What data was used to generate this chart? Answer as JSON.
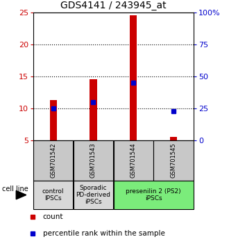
{
  "title": "GDS4141 / 243945_at",
  "samples": [
    "GSM701542",
    "GSM701543",
    "GSM701544",
    "GSM701545"
  ],
  "bar_bottom": 5.0,
  "bar_tops": [
    11.3,
    14.5,
    24.5,
    5.5
  ],
  "percentile_values": [
    10.0,
    11.0,
    14.0,
    9.5
  ],
  "ylim_left": [
    5,
    25
  ],
  "yticks_left": [
    5,
    10,
    15,
    20,
    25
  ],
  "yticks_right": [
    0,
    25,
    50,
    75,
    100
  ],
  "ytick_labels_right": [
    "0",
    "25",
    "50",
    "75",
    "100%"
  ],
  "red_color": "#cc0000",
  "blue_color": "#0000cc",
  "bar_width": 0.18,
  "groups": [
    {
      "label": "control\nIPSCs",
      "samples": [
        0
      ],
      "color": "#d8d8d8"
    },
    {
      "label": "Sporadic\nPD-derived\niPSCs",
      "samples": [
        1
      ],
      "color": "#d8d8d8"
    },
    {
      "label": "presenilin 2 (PS2)\niPSCs",
      "samples": [
        2,
        3
      ],
      "color": "#7bec7b"
    }
  ],
  "legend_count_label": "count",
  "legend_percentile_label": "percentile rank within the sample",
  "cell_line_label": "cell line",
  "sample_box_color": "#c8c8c8",
  "title_fontsize": 10,
  "tick_fontsize": 8,
  "sample_fontsize": 6,
  "group_fontsize": 6.5,
  "legend_fontsize": 7.5
}
